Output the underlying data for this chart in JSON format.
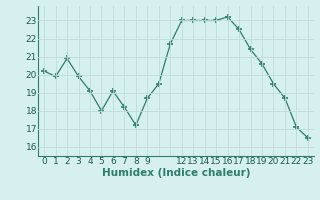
{
  "x": [
    0,
    1,
    2,
    3,
    4,
    5,
    6,
    7,
    8,
    9,
    10,
    11,
    12,
    13,
    14,
    15,
    16,
    17,
    18,
    19,
    20,
    21,
    22,
    23
  ],
  "y": [
    20.2,
    19.9,
    20.9,
    19.9,
    19.1,
    18.0,
    19.1,
    18.2,
    17.2,
    18.7,
    19.5,
    21.7,
    23.0,
    23.0,
    23.0,
    23.0,
    23.2,
    22.5,
    21.4,
    20.6,
    19.5,
    18.7,
    17.1,
    16.5
  ],
  "xlabel": "Humidex (Indice chaleur)",
  "ylim": [
    15.5,
    23.8
  ],
  "yticks": [
    16,
    17,
    18,
    19,
    20,
    21,
    22,
    23
  ],
  "line_color": "#2e7d6e",
  "marker": "+",
  "marker_size": 5,
  "bg_color": "#d6f0ef",
  "grid_color": "#c0dbd9",
  "fig_bg": "#d6f0ef",
  "xtick_labels_all": [
    "0",
    "1",
    "2",
    "3",
    "4",
    "5",
    "6",
    "7",
    "8",
    "9",
    "",
    "",
    "12",
    "13",
    "14",
    "15",
    "16",
    "17",
    "18",
    "19",
    "20",
    "21",
    "22",
    "23"
  ]
}
